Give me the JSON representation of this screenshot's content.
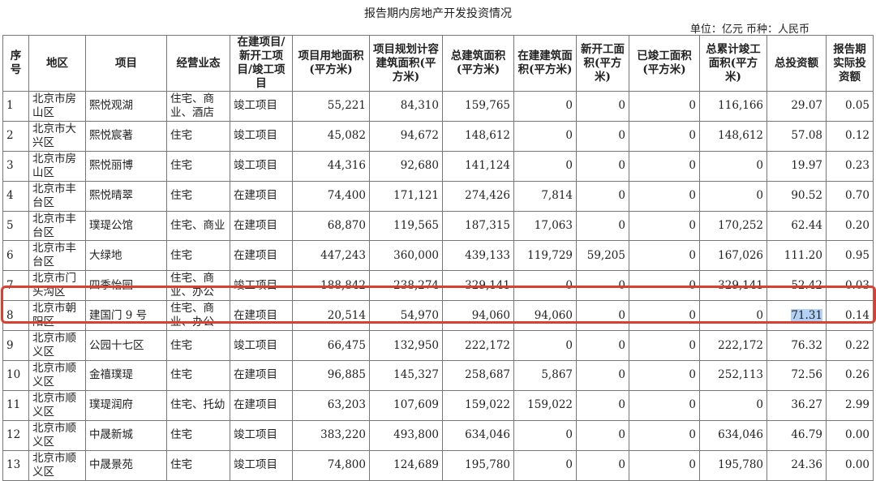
{
  "title": "报告期内房地产开发投资情况",
  "unit": "单位：亿元  币种：人民币",
  "colors": {
    "highlight_box": "#d9402f",
    "selection": "#b3d1f5"
  },
  "headers": [
    "序号",
    "地区",
    "项目",
    "经营业态",
    "在建项目/新开工项目/竣工项目",
    "项目用地面积(平方米)",
    "项目规划计容建筑面积(平方米)",
    "总建筑面积(平方米)",
    "在建建筑面积(平方米)",
    "新开工面积(平方米)",
    "已竣工面积(平方米)",
    "总累计竣工面积(平方米)",
    "总投资额",
    "报告期实际投资额"
  ],
  "rows": [
    [
      "1",
      "北京市房山区",
      "熙悦观湖",
      "住宅、商业、酒店",
      "竣工项目",
      "55,221",
      "84,310",
      "159,765",
      "0",
      "0",
      "0",
      "116,166",
      "29.07",
      "0.05"
    ],
    [
      "2",
      "北京市大兴区",
      "熙悦宸著",
      "住宅",
      "竣工项目",
      "45,082",
      "94,672",
      "148,612",
      "0",
      "0",
      "0",
      "148,612",
      "57.08",
      "0.12"
    ],
    [
      "3",
      "北京市房山区",
      "熙悦丽博",
      "住宅",
      "竣工项目",
      "44,316",
      "92,680",
      "141,124",
      "0",
      "0",
      "0",
      "0",
      "19.97",
      "0.23"
    ],
    [
      "4",
      "北京市丰台区",
      "熙悦晴翠",
      "住宅",
      "在建项目",
      "74,400",
      "171,121",
      "274,426",
      "7,814",
      "0",
      "0",
      "0",
      "90.52",
      "0.70"
    ],
    [
      "5",
      "北京市丰台区",
      "璞瑅公馆",
      "住宅、商业",
      "在建项目",
      "68,870",
      "119,565",
      "187,315",
      "17,063",
      "0",
      "0",
      "170,252",
      "62.44",
      "0.20"
    ],
    [
      "6",
      "北京市丰台区",
      "大绿地",
      "住宅",
      "在建项目",
      "447,243",
      "360,000",
      "439,133",
      "119,729",
      "59,205",
      "0",
      "167,026",
      "111.20",
      "0.95"
    ],
    [
      "7",
      "北京市门头沟区",
      "四季怡园",
      "住宅、商业、办公",
      "竣工项目",
      "188,842",
      "238,274",
      "329,141",
      "0",
      "0",
      "0",
      "329,141",
      "52.42",
      "0.03"
    ],
    [
      "8",
      "北京市朝阳区",
      "建国门 9 号",
      "住宅、商业、办公",
      "在建项目",
      "20,514",
      "54,970",
      "94,060",
      "94,060",
      "0",
      "0",
      "0",
      "71.31",
      "0.14"
    ],
    [
      "9",
      "北京市顺义区",
      "公园十七区",
      "住宅",
      "竣工项目",
      "66,475",
      "132,950",
      "222,172",
      "0",
      "0",
      "0",
      "222,172",
      "76.32",
      "0.22"
    ],
    [
      "10",
      "北京市顺义区",
      "金禧璞瑅",
      "住宅",
      "在建项目",
      "96,885",
      "145,327",
      "258,687",
      "5,867",
      "0",
      "0",
      "252,113",
      "72.56",
      "0.26"
    ],
    [
      "11",
      "北京市顺义区",
      "璞瑅润府",
      "住宅、托幼",
      "在建项目",
      "63,203",
      "107,609",
      "159,022",
      "159,022",
      "0",
      "0",
      "0",
      "36.27",
      "2.99"
    ],
    [
      "12",
      "北京市顺义区",
      "中晟新城",
      "住宅",
      "竣工项目",
      "383,220",
      "493,800",
      "634,046",
      "0",
      "0",
      "0",
      "634,046",
      "46.79",
      "0.00"
    ],
    [
      "13",
      "北京市顺义区",
      "中晟景苑",
      "住宅",
      "竣工项目",
      "74,800",
      "124,689",
      "195,780",
      "0",
      "0",
      "0",
      "195,780",
      "24.36",
      "0.00"
    ]
  ],
  "highlighted_row": "8",
  "selected_cell": "71.31"
}
